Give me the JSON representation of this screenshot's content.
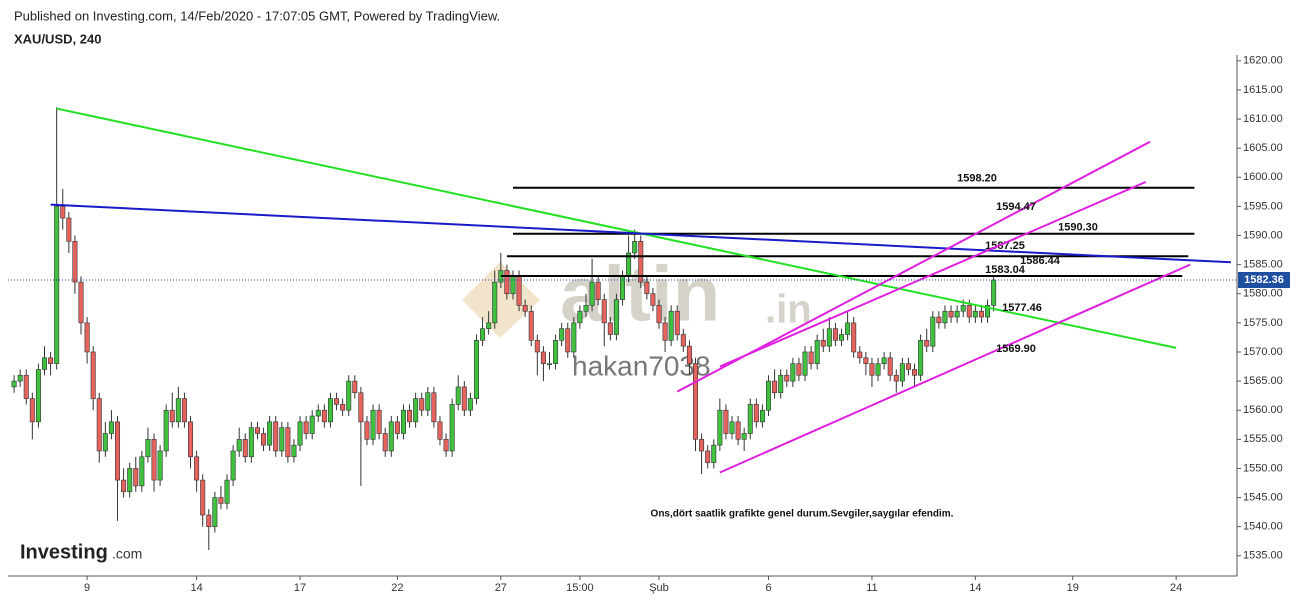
{
  "header": {
    "published": "Published on Investing.com, 14/Feb/2020 - 17:07:05 GMT, Powered by TradingView.",
    "symbol": "XAU/USD, 240"
  },
  "watermark": {
    "brand": "altin",
    "brand_suffix": ".in",
    "user": "hakan7038"
  },
  "logo": {
    "name": "Investing",
    "suffix": ".com"
  },
  "chart_data": {
    "type": "candlestick",
    "note": "Ons,dört saatlik grafikte genel durum.Sevgiler,saygılar efendim.",
    "up_color": "#3fc13f",
    "down_color": "#e5625d",
    "wick_color": "#333333",
    "price_line_color": "#1f4fa0",
    "xlim": [
      -1,
      201
    ],
    "xticks": [
      {
        "value": 12,
        "label": "9"
      },
      {
        "value": 30,
        "label": "14"
      },
      {
        "value": 47,
        "label": "17"
      },
      {
        "value": 63,
        "label": "22"
      },
      {
        "value": 80,
        "label": "27"
      },
      {
        "value": 93,
        "label": "15:00"
      },
      {
        "value": 106,
        "label": "Şub"
      },
      {
        "value": 124,
        "label": "6"
      },
      {
        "value": 141,
        "label": "11"
      },
      {
        "value": 158,
        "label": "14"
      },
      {
        "value": 174,
        "label": "19"
      },
      {
        "value": 191,
        "label": "24"
      }
    ],
    "ylim": [
      1531.7,
      1621
    ],
    "yticks": [
      {
        "value": 1535,
        "label": "1535.00"
      },
      {
        "value": 1540,
        "label": "1540.00"
      },
      {
        "value": 1545,
        "label": "1545.00"
      },
      {
        "value": 1550,
        "label": "1550.00"
      },
      {
        "value": 1555,
        "label": "1555.00"
      },
      {
        "value": 1560,
        "label": "1560.00"
      },
      {
        "value": 1565,
        "label": "1565.00"
      },
      {
        "value": 1570,
        "label": "1570.00"
      },
      {
        "value": 1575,
        "label": "1575.00"
      },
      {
        "value": 1580,
        "label": "1580.00"
      },
      {
        "value": 1585,
        "label": "1585.00"
      },
      {
        "value": 1590,
        "label": "1590.00"
      },
      {
        "value": 1595,
        "label": "1595.00"
      },
      {
        "value": 1600,
        "label": "1600.00"
      },
      {
        "value": 1605,
        "label": "1605.00"
      },
      {
        "value": 1610,
        "label": "1610.00"
      },
      {
        "value": 1615,
        "label": "1615.00"
      },
      {
        "value": 1620,
        "label": "1620.00"
      }
    ],
    "open": [
      1564,
      1565,
      1566,
      1562,
      1558,
      1567,
      1569,
      1568,
      1595,
      1593,
      1589,
      1582,
      1575,
      1570,
      1562,
      1553,
      1556,
      1558,
      1548,
      1546,
      1550,
      1547,
      1552,
      1555,
      1548,
      1553,
      1560,
      1558,
      1562,
      1558,
      1552,
      1548,
      1542,
      1540,
      1545,
      1544,
      1548,
      1553,
      1555,
      1552,
      1557,
      1556,
      1554,
      1558,
      1553,
      1557,
      1552,
      1554,
      1558,
      1556,
      1559,
      1560,
      1558,
      1562,
      1561,
      1560,
      1565,
      1563,
      1558,
      1555,
      1560,
      1556,
      1553,
      1558,
      1556,
      1560,
      1558,
      1562,
      1560,
      1563,
      1558,
      1555,
      1553,
      1561,
      1564,
      1560,
      1562,
      1572,
      1574,
      1575,
      1582,
      1584,
      1580,
      1583,
      1578,
      1577,
      1572,
      1570,
      1568,
      1568,
      1572,
      1574,
      1570,
      1575,
      1577,
      1578,
      1582,
      1579,
      1575,
      1573,
      1579,
      1583,
      1587,
      1589,
      1582,
      1580,
      1578,
      1575,
      1572,
      1577,
      1573,
      1571,
      1568,
      1555,
      1553,
      1551,
      1554,
      1560,
      1556,
      1558,
      1555,
      1556,
      1561,
      1558,
      1560,
      1565,
      1563,
      1566,
      1565,
      1568,
      1566,
      1570,
      1568,
      1572,
      1571,
      1574,
      1572,
      1573,
      1575,
      1570,
      1569,
      1568,
      1566,
      1568,
      1569,
      1566,
      1565,
      1568,
      1567,
      1566,
      1572,
      1571,
      1576,
      1575,
      1577,
      1576,
      1577,
      1578,
      1576,
      1577,
      1576,
      1578
    ],
    "high": [
      1566,
      1567,
      1567,
      1563,
      1568,
      1571,
      1570,
      1612,
      1598,
      1594,
      1590,
      1583,
      1576,
      1571,
      1563,
      1558,
      1560,
      1559,
      1550,
      1551,
      1552,
      1553,
      1557,
      1556,
      1554,
      1561,
      1563,
      1564,
      1563,
      1559,
      1553,
      1549,
      1543,
      1546,
      1547,
      1549,
      1554,
      1557,
      1556,
      1558,
      1558,
      1557,
      1559,
      1559,
      1558,
      1558,
      1555,
      1559,
      1559,
      1560,
      1561,
      1561,
      1563,
      1563,
      1562,
      1566,
      1566,
      1564,
      1559,
      1561,
      1561,
      1557,
      1559,
      1559,
      1561,
      1561,
      1563,
      1563,
      1564,
      1564,
      1559,
      1556,
      1562,
      1566,
      1565,
      1563,
      1573,
      1576,
      1577,
      1584,
      1587,
      1585,
      1584,
      1584,
      1579,
      1578,
      1573,
      1571,
      1570,
      1573,
      1575,
      1575,
      1576,
      1578,
      1580,
      1586,
      1583,
      1580,
      1576,
      1580,
      1584,
      1590,
      1591,
      1590,
      1583,
      1581,
      1579,
      1576,
      1578,
      1578,
      1574,
      1572,
      1569,
      1556,
      1554,
      1555,
      1562,
      1561,
      1559,
      1559,
      1557,
      1562,
      1562,
      1561,
      1566,
      1567,
      1567,
      1567,
      1569,
      1569,
      1571,
      1571,
      1573,
      1574,
      1576,
      1575,
      1574,
      1577,
      1576,
      1571,
      1570,
      1569,
      1569,
      1570,
      1570,
      1567,
      1569,
      1569,
      1568,
      1573,
      1574,
      1577,
      1577,
      1578,
      1578,
      1578,
      1579,
      1579,
      1578,
      1578,
      1579,
      1583
    ],
    "low": [
      1563,
      1564,
      1561,
      1555,
      1557,
      1566,
      1566,
      1567,
      1591,
      1587,
      1580,
      1573,
      1568,
      1560,
      1551,
      1552,
      1555,
      1541,
      1545,
      1545,
      1546,
      1546,
      1551,
      1546,
      1547,
      1552,
      1557,
      1557,
      1557,
      1550,
      1546,
      1540,
      1536,
      1539,
      1543,
      1543,
      1547,
      1552,
      1551,
      1551,
      1555,
      1553,
      1553,
      1552,
      1552,
      1551,
      1551,
      1553,
      1555,
      1555,
      1558,
      1557,
      1557,
      1560,
      1559,
      1559,
      1562,
      1547,
      1554,
      1554,
      1555,
      1552,
      1552,
      1555,
      1555,
      1557,
      1557,
      1559,
      1559,
      1557,
      1554,
      1552,
      1552,
      1560,
      1559,
      1559,
      1561,
      1571,
      1573,
      1574,
      1581,
      1579,
      1579,
      1577,
      1576,
      1571,
      1566,
      1565,
      1567,
      1567,
      1571,
      1569,
      1569,
      1574,
      1576,
      1577,
      1578,
      1571,
      1572,
      1572,
      1578,
      1582,
      1586,
      1581,
      1579,
      1577,
      1574,
      1570,
      1571,
      1572,
      1570,
      1566,
      1553,
      1549,
      1550,
      1550,
      1553,
      1555,
      1555,
      1554,
      1553,
      1555,
      1557,
      1557,
      1559,
      1562,
      1562,
      1564,
      1564,
      1565,
      1565,
      1567,
      1567,
      1570,
      1570,
      1571,
      1571,
      1572,
      1569,
      1568,
      1566,
      1564,
      1565,
      1567,
      1565,
      1563,
      1564,
      1566,
      1564,
      1565,
      1570,
      1570,
      1574,
      1574,
      1575,
      1575,
      1576,
      1575,
      1575,
      1575,
      1575,
      1577
    ],
    "close": [
      1565,
      1566,
      1562,
      1558,
      1567,
      1569,
      1568,
      1595,
      1593,
      1589,
      1582,
      1575,
      1570,
      1562,
      1553,
      1556,
      1558,
      1548,
      1546,
      1550,
      1547,
      1552,
      1555,
      1548,
      1553,
      1560,
      1558,
      1562,
      1558,
      1552,
      1548,
      1542,
      1540,
      1545,
      1544,
      1548,
      1553,
      1555,
      1552,
      1557,
      1556,
      1554,
      1558,
      1553,
      1557,
      1552,
      1554,
      1558,
      1556,
      1559,
      1560,
      1558,
      1562,
      1561,
      1560,
      1565,
      1563,
      1558,
      1555,
      1560,
      1556,
      1553,
      1558,
      1556,
      1560,
      1558,
      1562,
      1560,
      1563,
      1558,
      1555,
      1553,
      1561,
      1564,
      1560,
      1562,
      1572,
      1574,
      1575,
      1582,
      1584,
      1580,
      1583,
      1578,
      1577,
      1572,
      1570,
      1568,
      1568,
      1572,
      1574,
      1570,
      1575,
      1577,
      1578,
      1582,
      1579,
      1575,
      1573,
      1579,
      1583,
      1587,
      1589,
      1582,
      1580,
      1578,
      1575,
      1572,
      1577,
      1573,
      1571,
      1568,
      1555,
      1553,
      1551,
      1554,
      1560,
      1556,
      1558,
      1555,
      1556,
      1561,
      1558,
      1560,
      1565,
      1563,
      1566,
      1565,
      1568,
      1566,
      1570,
      1568,
      1572,
      1571,
      1574,
      1572,
      1573,
      1575,
      1570,
      1569,
      1568,
      1566,
      1568,
      1569,
      1566,
      1565,
      1568,
      1567,
      1566,
      1572,
      1571,
      1576,
      1575,
      1577,
      1576,
      1577,
      1578,
      1576,
      1577,
      1576,
      1578,
      1582.36
    ],
    "levels": [
      {
        "value": 1598.2,
        "label": "1598.20",
        "span": [
          82,
          194
        ]
      },
      {
        "value": 1590.3,
        "label": "1590.30",
        "span": [
          82,
          194
        ]
      },
      {
        "value": 1586.44,
        "label": "1586.44",
        "span": [
          81,
          193
        ]
      },
      {
        "value": 1583.04,
        "label": "1583.04",
        "span": [
          80,
          192
        ]
      }
    ],
    "trendlines": [
      {
        "color": "#22e022",
        "label": "1577.46",
        "points": [
          [
            7,
            1611.8
          ],
          [
            191,
            1570.7
          ]
        ]
      },
      {
        "color": "#1a1ac8",
        "label": "1587.25",
        "points": [
          [
            6,
            1595.3
          ],
          [
            200,
            1585.4
          ]
        ]
      },
      {
        "color": "#e020e0",
        "label": "1594.47",
        "points": [
          [
            109,
            1563.2
          ],
          [
            186.7,
            1606.1
          ]
        ]
      },
      {
        "color": "#e020e0",
        "points": [
          [
            116,
            1567.5
          ],
          [
            186,
            1599.2
          ]
        ]
      },
      {
        "color": "#e020e0",
        "label": "1569.90",
        "points": [
          [
            116,
            1549.3
          ],
          [
            193.3,
            1585
          ]
        ]
      }
    ]
  }
}
